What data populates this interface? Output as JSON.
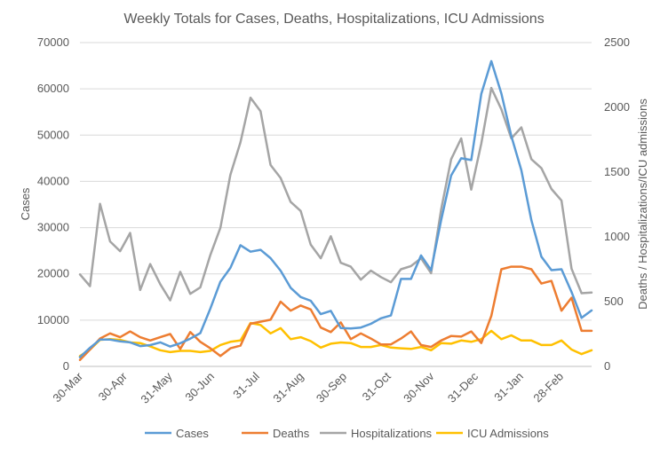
{
  "chart_data": {
    "type": "line",
    "title": "Weekly Totals for Cases, Deaths, Hospitalizations, ICU Admissions",
    "ylabel": "Cases",
    "y2label": "Deaths / Hospitalizations/ICU admissions",
    "ylim": [
      0,
      70000
    ],
    "y2lim": [
      0,
      2500
    ],
    "yticks": [
      "0",
      "10000",
      "20000",
      "30000",
      "40000",
      "50000",
      "60000",
      "70000"
    ],
    "y2ticks": [
      "0",
      "500",
      "1000",
      "1500",
      "2000",
      "2500"
    ],
    "xtick_labels": [
      "30-Mar",
      "30-Apr",
      "31-May",
      "30-Jun",
      "31-Jul",
      "31-Aug",
      "30-Sep",
      "31-Oct",
      "30-Nov",
      "31-Dec",
      "31-Jan",
      "28-Feb"
    ],
    "xtick_index": [
      0,
      4.4,
      8.9,
      13.1,
      17.6,
      22,
      26.3,
      30.7,
      35,
      39.4,
      43.9,
      47.9
    ],
    "grid": true,
    "legend": "bottom",
    "colors": {
      "cases": "#5b9bd5",
      "deaths": "#ed7d31",
      "hospitalizations": "#a5a5a5",
      "icu": "#ffc000"
    },
    "series": [
      {
        "name": "Cases",
        "axis": "left",
        "values": [
          2000,
          4000,
          5800,
          5800,
          5400,
          5200,
          4400,
          4600,
          5200,
          4300,
          5000,
          6000,
          7200,
          12500,
          18300,
          21300,
          26200,
          24800,
          25200,
          23400,
          20700,
          17000,
          15000,
          14200,
          11300,
          12000,
          8300,
          8200,
          8400,
          9200,
          10400,
          11000,
          18900,
          18900,
          24000,
          20800,
          31600,
          41300,
          45000,
          44600,
          58900,
          66000,
          59000,
          49800,
          42400,
          31600,
          23700,
          20800,
          21000,
          16100,
          10500,
          12100
        ]
      },
      {
        "name": "Deaths",
        "axis": "right",
        "values": [
          50,
          130,
          215,
          255,
          225,
          270,
          225,
          200,
          225,
          250,
          135,
          265,
          190,
          140,
          80,
          140,
          160,
          330,
          345,
          360,
          500,
          430,
          470,
          440,
          300,
          265,
          340,
          210,
          255,
          215,
          170,
          170,
          215,
          270,
          165,
          150,
          200,
          235,
          230,
          270,
          180,
          390,
          750,
          770,
          770,
          750,
          640,
          660,
          430,
          530,
          275,
          275
        ]
      },
      {
        "name": "Hospitalizations",
        "axis": "right",
        "values": [
          710,
          620,
          1255,
          965,
          890,
          1030,
          590,
          790,
          635,
          510,
          730,
          560,
          610,
          860,
          1070,
          1480,
          1730,
          2075,
          1970,
          1555,
          1455,
          1270,
          1200,
          940,
          835,
          1005,
          800,
          770,
          670,
          740,
          690,
          650,
          750,
          775,
          835,
          720,
          1210,
          1600,
          1760,
          1365,
          1720,
          2150,
          1985,
          1760,
          1845,
          1600,
          1530,
          1370,
          1280,
          755,
          565,
          570
        ]
      },
      {
        "name": "ICU Admissions",
        "axis": "right",
        "values": [
          80,
          130,
          205,
          210,
          205,
          185,
          180,
          155,
          125,
          110,
          120,
          120,
          110,
          120,
          165,
          190,
          200,
          335,
          320,
          255,
          295,
          210,
          225,
          195,
          145,
          175,
          185,
          180,
          150,
          150,
          165,
          145,
          140,
          135,
          150,
          125,
          180,
          175,
          200,
          190,
          210,
          275,
          210,
          240,
          200,
          200,
          165,
          165,
          200,
          130,
          95,
          125
        ]
      }
    ]
  }
}
